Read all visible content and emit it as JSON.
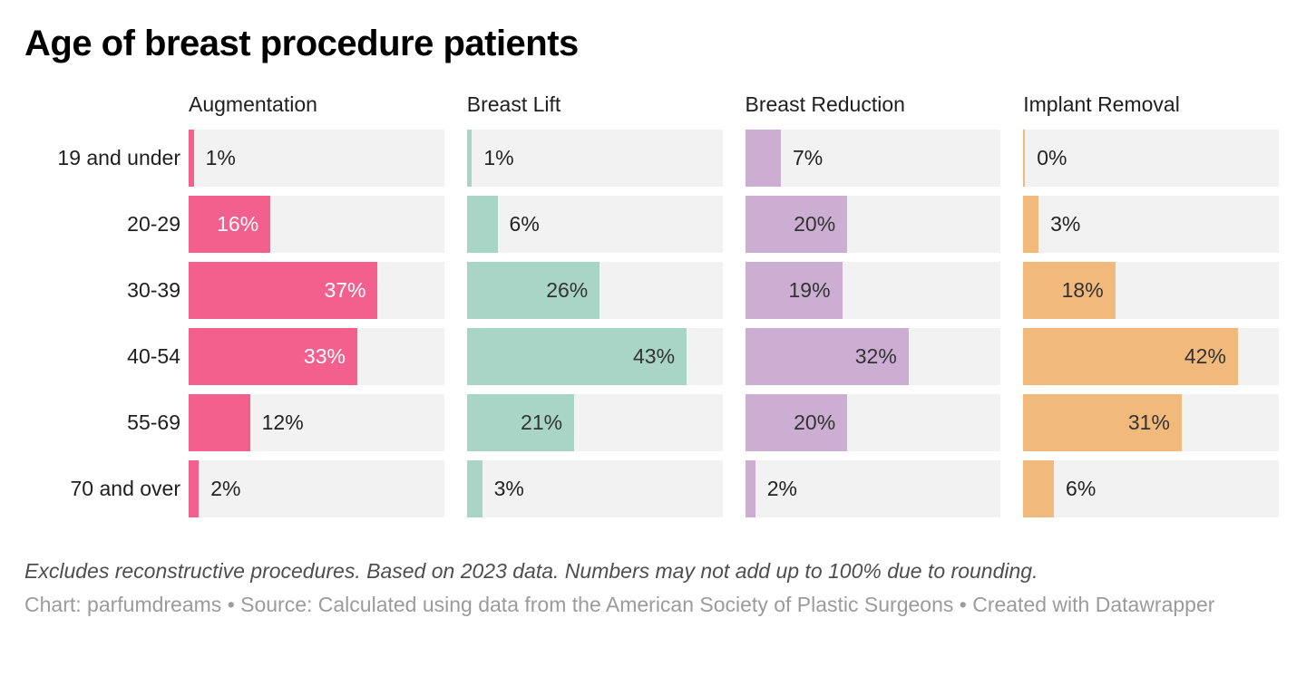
{
  "title": "Age of breast procedure patients",
  "chart_data": {
    "type": "bar",
    "layout": "horizontal-grouped-small-multiples",
    "title": "Age of breast procedure patients",
    "categories": [
      "19 and under",
      "20-29",
      "30-39",
      "40-54",
      "55-69",
      "70 and over"
    ],
    "series": [
      {
        "name": "Augmentation",
        "color": "#f4608d",
        "inside_label_color": "#ffffff",
        "values": [
          1,
          16,
          37,
          33,
          12,
          2
        ]
      },
      {
        "name": "Breast Lift",
        "color": "#a9d5c6",
        "inside_label_color": "#333333",
        "values": [
          1,
          6,
          26,
          43,
          21,
          3
        ]
      },
      {
        "name": "Breast Reduction",
        "color": "#cbaed1",
        "inside_label_color": "#333333",
        "values": [
          7,
          20,
          19,
          32,
          20,
          2
        ]
      },
      {
        "name": "Implant Removal",
        "color": "#f2b97c",
        "inside_label_color": "#333333",
        "values": [
          0,
          3,
          18,
          42,
          31,
          6
        ]
      }
    ],
    "value_suffix": "%",
    "xmax": 50,
    "track_color": "#f2f2f2",
    "grid": false,
    "legend_position": "column-headers"
  },
  "footer": {
    "note": "Excludes reconstructive procedures. Based on 2023 data. Numbers may not add up to 100% due to rounding.",
    "attribution": "Chart: parfumdreams • Source: Calculated using data from the American Society of Plastic Surgeons • Created with Datawrapper"
  }
}
